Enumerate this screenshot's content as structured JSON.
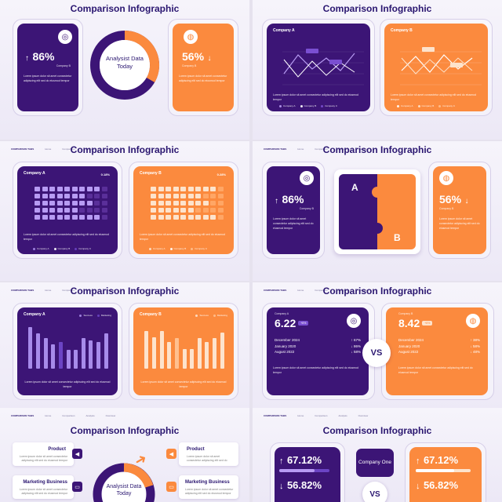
{
  "title": "Comparison Infographic",
  "nav": [
    "COMPARISON TABS",
    "Home",
    "Comparison",
    "Analysis",
    "Overview"
  ],
  "company_a": "Company A",
  "company_b": "Company B",
  "company_one": "Company One",
  "vs": "VS",
  "analysist": "Analysist Data Today",
  "pct_86": "86%",
  "pct_56": "56%",
  "company_b_small": "Company B",
  "pct_018": "0.18%",
  "pct_028": "0.28%",
  "val_622": "6.22",
  "val_842": "8.42",
  "tag": "+6%",
  "dates": [
    "December 2024",
    "January 2020",
    "August 2022"
  ],
  "right_a": [
    "67%",
    "86%",
    "58%"
  ],
  "right_b": [
    "38%",
    "58%",
    "48%"
  ],
  "pct_6712": "67.12%",
  "pct_5682": "56.82%",
  "product": "Product",
  "marketing": "Marketing Business",
  "lorem": "Lorem ipsum dolor sit amet consectetur adipiscing elit sed do eiusmod tempor",
  "legend": [
    "Company A",
    "Company B",
    "Company C"
  ],
  "bar_legend": [
    "Success",
    "Marketing"
  ],
  "puzzle_a": "A",
  "puzzle_b": "B",
  "colors": {
    "purple": "#3c1576",
    "orange": "#fb8a3e",
    "light_purple": "#a78bea",
    "light_orange": "#fde3cc"
  },
  "chart_data": [
    {
      "type": "bar",
      "title": "Company A",
      "values": [
        95,
        80,
        70,
        55,
        60,
        42,
        42,
        70,
        65,
        60,
        80
      ]
    },
    {
      "type": "bar",
      "title": "Company B",
      "values": [
        85,
        72,
        85,
        60,
        70,
        45,
        45,
        70,
        60,
        70,
        82
      ]
    }
  ]
}
